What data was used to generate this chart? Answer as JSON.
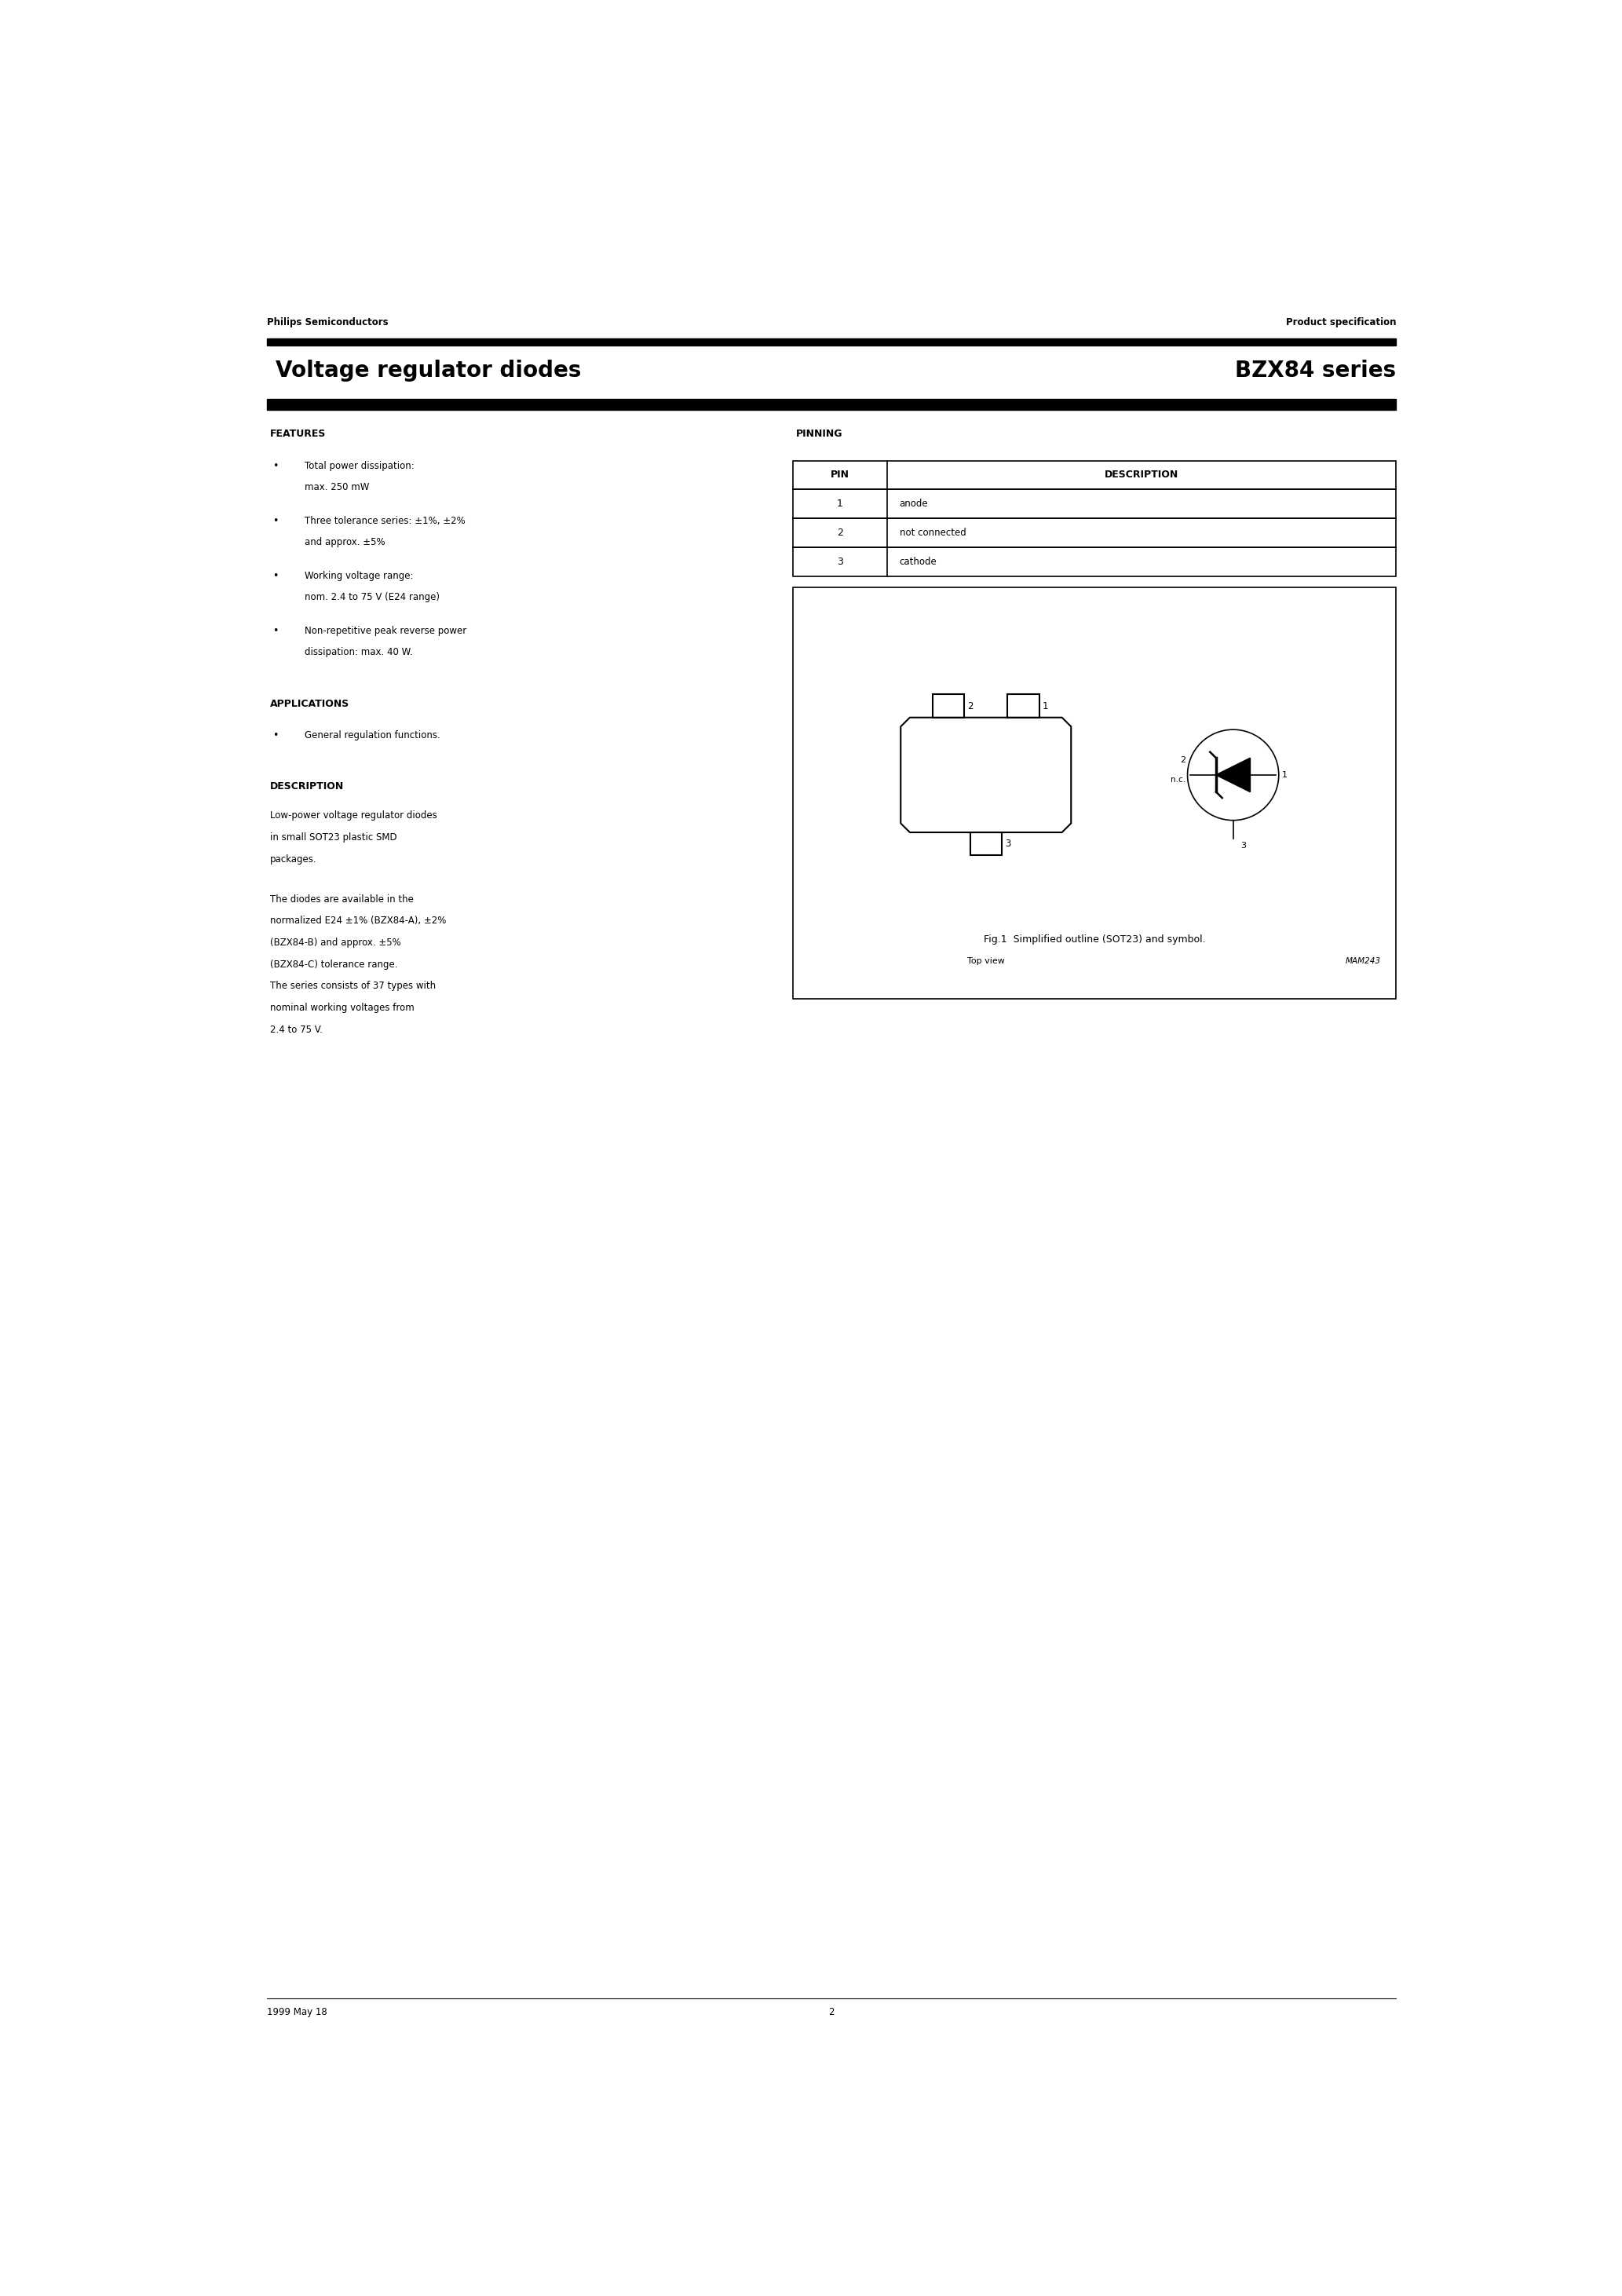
{
  "page_width": 20.66,
  "page_height": 29.24,
  "bg_color": "#ffffff",
  "text_color": "#000000",
  "header_left": "Philips Semiconductors",
  "header_right": "Product specification",
  "title_left": "Voltage regulator diodes",
  "title_right": "BZX84 series",
  "section_features": "FEATURES",
  "features": [
    "Total power dissipation:\nmax. 250 mW",
    "Three tolerance series: ±1%, ±2%\nand approx. ±5%",
    "Working voltage range:\nnom. 2.4 to 75 V (E24 range)",
    "Non-repetitive peak reverse power\ndissipation: max. 40 W."
  ],
  "section_applications": "APPLICATIONS",
  "applications": [
    "General regulation functions."
  ],
  "section_description": "DESCRIPTION",
  "description_text1": "Low-power voltage regulator diodes\nin small SOT23 plastic SMD\npackages.",
  "description_text2": "The diodes are available in the\nnormalized E24 ±1% (BZX84-A), ±2%\n(BZX84-B) and approx. ±5%\n(BZX84-C) tolerance range.\nThe series consists of 37 types with\nnominal working voltages from\n2.4 to 75 V.",
  "section_pinning": "PINNING",
  "pin_header_pin": "PIN",
  "pin_header_desc": "DESCRIPTION",
  "pin_data": [
    [
      "1",
      "anode"
    ],
    [
      "2",
      "not connected"
    ],
    [
      "3",
      "cathode"
    ]
  ],
  "fig_caption": "Fig.1  Simplified outline (SOT23) and symbol.",
  "fig_label_topview": "Top view",
  "fig_label_mamid": "MAM243",
  "footer_left": "1999 May 18",
  "footer_center": "2"
}
